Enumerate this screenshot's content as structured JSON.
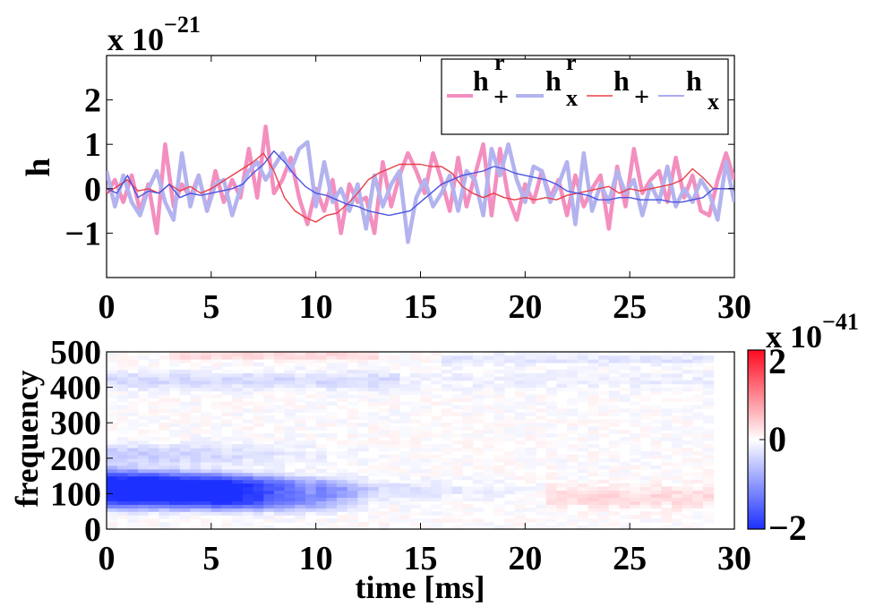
{
  "figure": {
    "top": {
      "scale_base": "x 10",
      "scale_exp": "−21",
      "ylabel": "h",
      "xlim": [
        0,
        30
      ],
      "ylim": [
        -2,
        3
      ],
      "xticks": [
        {
          "v": 0,
          "label": "0"
        },
        {
          "v": 5,
          "label": "5"
        },
        {
          "v": 10,
          "label": "10"
        },
        {
          "v": 15,
          "label": "15"
        },
        {
          "v": 20,
          "label": "20"
        },
        {
          "v": 25,
          "label": "25"
        },
        {
          "v": 30,
          "label": "30"
        }
      ],
      "yticks": [
        {
          "v": -1,
          "label": "−1"
        },
        {
          "v": 0,
          "label": "0"
        },
        {
          "v": 1,
          "label": "1"
        },
        {
          "v": 2,
          "label": "2"
        }
      ],
      "legend": [
        {
          "name": "h",
          "sub": "+",
          "sup": "r",
          "color": "#f38fbf",
          "kind": "thick"
        },
        {
          "name": "h",
          "sub": "x",
          "sup": "r",
          "color": "#b3b3ef",
          "kind": "thick"
        },
        {
          "name": "h",
          "sub": "+",
          "sup": "",
          "color": "#e8404a",
          "kind": "thin"
        },
        {
          "name": "h",
          "sub": "x",
          "sup": "",
          "color": "#8e8ef0",
          "kind": "thin"
        }
      ]
    },
    "bottom": {
      "ylabel": "frequency",
      "xlabel": "time [ms]",
      "xlim": [
        0,
        30
      ],
      "ylim": [
        0,
        500
      ],
      "xticks": [
        {
          "v": 0,
          "label": "0"
        },
        {
          "v": 5,
          "label": "5"
        },
        {
          "v": 10,
          "label": "10"
        },
        {
          "v": 15,
          "label": "15"
        },
        {
          "v": 20,
          "label": "20"
        },
        {
          "v": 25,
          "label": "25"
        },
        {
          "v": 30,
          "label": "30"
        }
      ],
      "yticks": [
        {
          "v": 0,
          "label": "0"
        },
        {
          "v": 100,
          "label": "100"
        },
        {
          "v": 200,
          "label": "200"
        },
        {
          "v": 300,
          "label": "300"
        },
        {
          "v": 400,
          "label": "400"
        },
        {
          "v": 500,
          "label": "500"
        }
      ],
      "colorbar": {
        "scale_base": "x 10",
        "scale_exp": "−41",
        "ticks": [
          {
            "v": 2,
            "label": "2"
          },
          {
            "v": 0,
            "label": "0"
          },
          {
            "v": -2,
            "label": "−2"
          }
        ],
        "range": [
          -2,
          2
        ]
      }
    }
  },
  "chart_data": [
    {
      "type": "line",
      "title": "",
      "xlabel": "",
      "ylabel": "h",
      "xlim": [
        0,
        30
      ],
      "ylim": [
        -2,
        3
      ],
      "y_scale_factor": "1e-21",
      "series": [
        {
          "name": "h+ (reconstructed)",
          "color": "#f38fbf",
          "width": 4.5,
          "x": [
            0,
            0.4,
            0.8,
            1.2,
            1.6,
            2.0,
            2.4,
            2.8,
            3.2,
            3.6,
            4.0,
            4.4,
            4.8,
            5.2,
            5.6,
            6.0,
            6.4,
            6.8,
            7.2,
            7.6,
            8.0,
            8.4,
            8.8,
            9.2,
            9.6,
            10.0,
            10.4,
            10.8,
            11.2,
            11.6,
            12.0,
            12.4,
            12.8,
            13.2,
            13.6,
            14.0,
            14.4,
            14.8,
            15.2,
            15.6,
            16.0,
            16.4,
            16.8,
            17.2,
            17.6,
            18.0,
            18.4,
            18.8,
            19.2,
            19.6,
            20.0,
            20.4,
            20.8,
            21.2,
            21.6,
            22.0,
            22.4,
            22.8,
            23.2,
            23.6,
            24.0,
            24.4,
            24.8,
            25.2,
            25.6,
            26.0,
            26.4,
            26.8,
            27.2,
            27.6,
            28.0,
            28.4,
            28.8,
            29.2,
            29.6,
            30.0
          ],
          "y": [
            -0.1,
            0.2,
            -0.3,
            0.3,
            -0.5,
            0.1,
            -1.0,
            1.0,
            -0.4,
            0.1,
            -0.2,
            0.3,
            -0.5,
            0.4,
            -0.3,
            0.2,
            -0.2,
            0.9,
            -0.2,
            1.4,
            -0.1,
            0.2,
            0.7,
            -0.2,
            -0.8,
            0.0,
            -0.5,
            0.2,
            -1.0,
            0.1,
            -0.3,
            -0.2,
            -1.0,
            0.6,
            -0.4,
            0.3,
            0.8,
            0.4,
            -0.1,
            0.8,
            0.2,
            -0.5,
            0.7,
            -0.4,
            0.3,
            1.0,
            -0.6,
            0.9,
            -0.2,
            -0.7,
            0.1,
            -0.3,
            0.4,
            -0.2,
            0.2,
            -0.6,
            0.3,
            -0.4,
            0.0,
            0.3,
            -0.9,
            0.5,
            -0.4,
            0.9,
            -0.1,
            0.2,
            0.4,
            -0.3,
            0.7,
            -0.2,
            0.3,
            -0.5,
            -0.6,
            0.2,
            0.8,
            0.2
          ]
        },
        {
          "name": "hx (reconstructed)",
          "color": "#b3b3ef",
          "width": 4.5,
          "x": [
            0,
            0.4,
            0.8,
            1.2,
            1.6,
            2.0,
            2.4,
            2.8,
            3.2,
            3.6,
            4.0,
            4.4,
            4.8,
            5.2,
            5.6,
            6.0,
            6.4,
            6.8,
            7.2,
            7.6,
            8.0,
            8.4,
            8.8,
            9.2,
            9.6,
            10.0,
            10.4,
            10.8,
            11.2,
            11.6,
            12.0,
            12.4,
            12.8,
            13.2,
            13.6,
            14.0,
            14.4,
            14.8,
            15.2,
            15.6,
            16.0,
            16.4,
            16.8,
            17.2,
            17.6,
            18.0,
            18.4,
            18.8,
            19.2,
            19.6,
            20.0,
            20.4,
            20.8,
            21.2,
            21.6,
            22.0,
            22.4,
            22.8,
            23.2,
            23.6,
            24.0,
            24.4,
            24.8,
            25.2,
            25.6,
            26.0,
            26.4,
            26.8,
            27.2,
            27.6,
            28.0,
            28.4,
            28.8,
            29.2,
            29.6,
            30.0
          ],
          "y": [
            0.4,
            -0.4,
            0.3,
            -0.3,
            -0.6,
            0.0,
            0.4,
            -0.3,
            -0.7,
            0.8,
            -0.4,
            0.3,
            -0.5,
            0.1,
            0.2,
            -0.6,
            0.0,
            0.4,
            0.6,
            0.2,
            0.5,
            0.8,
            0.4,
            0.9,
            1.05,
            -0.4,
            0.6,
            -0.3,
            0.0,
            -0.5,
            0.1,
            -0.9,
            0.3,
            -0.4,
            0.1,
            0.4,
            -1.2,
            -0.2,
            0.2,
            -0.4,
            -0.1,
            0.3,
            -0.5,
            0.4,
            0.2,
            -0.6,
            0.9,
            0.3,
            1.0,
            0.2,
            -0.3,
            0.5,
            0.4,
            -0.3,
            0.1,
            0.6,
            -0.8,
            0.8,
            -0.5,
            0.1,
            -0.3,
            0.4,
            -0.1,
            0.2,
            -0.6,
            0.1,
            -0.3,
            0.5,
            -0.4,
            0.0,
            -0.3,
            0.2,
            -0.1,
            -0.7,
            0.6,
            -0.3
          ]
        },
        {
          "name": "h+",
          "color": "#e8404a",
          "width": 1.4,
          "x": [
            0,
            0.5,
            1.0,
            1.5,
            2.0,
            2.5,
            3.0,
            3.5,
            4.0,
            4.5,
            5.0,
            5.5,
            6.0,
            6.5,
            7.0,
            7.5,
            8.0,
            8.5,
            9.0,
            9.5,
            10.0,
            10.5,
            11.0,
            11.5,
            12.0,
            12.5,
            13.0,
            13.5,
            14.0,
            14.5,
            15.0,
            15.5,
            16.0,
            16.5,
            17.0,
            17.5,
            18.0,
            18.5,
            19.0,
            19.5,
            20.0,
            20.5,
            21.0,
            21.5,
            22.0,
            22.5,
            23.0,
            23.5,
            24.0,
            24.5,
            25.0,
            25.5,
            26.0,
            26.5,
            27.0,
            27.5,
            28.0,
            28.5,
            29.0,
            29.5,
            30.0
          ],
          "y": [
            -0.1,
            0.05,
            0.2,
            -0.05,
            0.0,
            -0.1,
            0.1,
            -0.05,
            0.05,
            -0.1,
            0.0,
            0.15,
            0.3,
            0.45,
            0.6,
            0.8,
            0.4,
            -0.2,
            -0.5,
            -0.65,
            -0.75,
            -0.6,
            -0.55,
            -0.35,
            -0.1,
            0.2,
            0.35,
            0.45,
            0.55,
            0.55,
            0.55,
            0.5,
            0.5,
            0.35,
            0.05,
            -0.1,
            -0.2,
            -0.1,
            -0.2,
            -0.25,
            -0.2,
            -0.25,
            -0.2,
            -0.25,
            -0.15,
            -0.1,
            -0.05,
            0.0,
            0.05,
            -0.1,
            0.0,
            -0.05,
            0.0,
            0.05,
            0.1,
            0.2,
            0.45,
            0.25,
            0.0,
            0.0,
            0.0
          ]
        },
        {
          "name": "hx",
          "color": "#4a54e0",
          "width": 1.4,
          "x": [
            0,
            0.5,
            1.0,
            1.5,
            2.0,
            2.5,
            3.0,
            3.5,
            4.0,
            4.5,
            5.0,
            5.5,
            6.0,
            6.5,
            7.0,
            7.5,
            8.0,
            8.5,
            9.0,
            9.5,
            10.0,
            10.5,
            11.0,
            11.5,
            12.0,
            12.5,
            13.0,
            13.5,
            14.0,
            14.5,
            15.0,
            15.5,
            16.0,
            16.5,
            17.0,
            17.5,
            18.0,
            18.5,
            19.0,
            19.5,
            20.0,
            20.5,
            21.0,
            21.5,
            22.0,
            22.5,
            23.0,
            23.5,
            24.0,
            24.5,
            25.0,
            25.5,
            26.0,
            26.5,
            27.0,
            27.5,
            28.0,
            28.5,
            29.0,
            29.5,
            30.0
          ],
          "y": [
            0.0,
            -0.1,
            0.3,
            -0.2,
            -0.05,
            -0.1,
            0.1,
            -0.2,
            -0.1,
            -0.15,
            -0.1,
            -0.05,
            0.0,
            0.1,
            0.35,
            0.55,
            0.85,
            0.6,
            0.3,
            0.05,
            -0.1,
            -0.15,
            -0.25,
            -0.35,
            -0.4,
            -0.5,
            -0.55,
            -0.6,
            -0.55,
            -0.5,
            -0.3,
            -0.1,
            0.1,
            0.2,
            0.3,
            0.35,
            0.4,
            0.5,
            0.45,
            0.35,
            0.3,
            0.25,
            0.2,
            0.1,
            -0.05,
            -0.1,
            -0.15,
            -0.25,
            -0.25,
            -0.2,
            -0.2,
            -0.25,
            -0.25,
            -0.25,
            -0.3,
            -0.3,
            -0.25,
            -0.2,
            0.0,
            0.0,
            0.0
          ]
        }
      ]
    },
    {
      "type": "heatmap",
      "title": "",
      "xlabel": "time [ms]",
      "ylabel": "frequency",
      "xlim": [
        0,
        30
      ],
      "ylim": [
        0,
        500
      ],
      "x_max_data": 29,
      "value_range": [
        -2,
        2
      ],
      "value_scale_factor": "1e-41",
      "colormap": "blue-white-red",
      "features": [
        {
          "t": [
            0,
            10
          ],
          "f": [
            70,
            150
          ],
          "value": -2.0,
          "note": "strong blue blob"
        },
        {
          "t": [
            4,
            12
          ],
          "f": [
            80,
            140
          ],
          "value": -1.6
        },
        {
          "t": [
            0,
            13
          ],
          "f": [
            150,
            190
          ],
          "value": -1.0
        },
        {
          "t": [
            12,
            20
          ],
          "f": [
            100,
            120
          ],
          "value": -0.4
        },
        {
          "t": [
            0,
            22
          ],
          "f": [
            390,
            460
          ],
          "value": -0.3
        },
        {
          "t": [
            3,
            12
          ],
          "f": [
            470,
            500
          ],
          "value": 0.3
        },
        {
          "t": [
            22,
            29
          ],
          "f": [
            40,
            120
          ],
          "value": 0.25
        }
      ]
    }
  ]
}
